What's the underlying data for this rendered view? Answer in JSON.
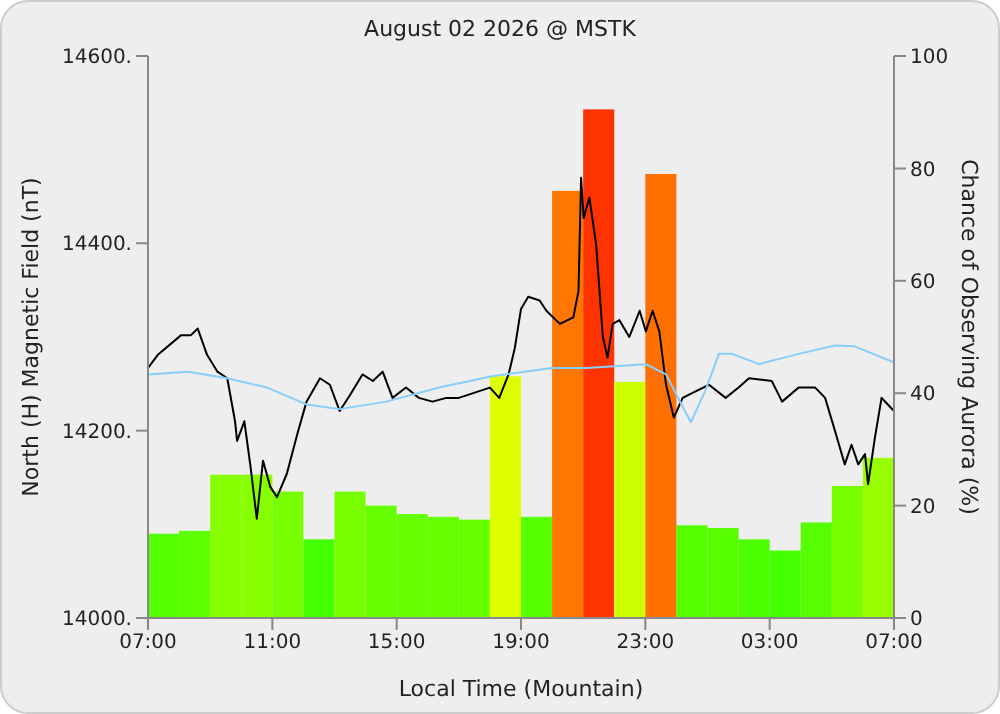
{
  "chart_data": {
    "type": "bar",
    "title": "August 02 2026 @ MSTK",
    "xlabel": "Local Time (Mountain)",
    "ylabel": "North (H) Magnetic Field (nT)",
    "y2label": "Chance of Observing Aurora (%)",
    "xlim": [
      "2026-08-02T07:00",
      "2026-08-03T07:00"
    ],
    "xticks": [
      {
        "value": "2026-08-02T07:00",
        "label": "07:00"
      },
      {
        "value": "2026-08-02T11:00",
        "label": "11:00"
      },
      {
        "value": "2026-08-02T15:00",
        "label": "15:00"
      },
      {
        "value": "2026-08-02T19:00",
        "label": "19:00"
      },
      {
        "value": "2026-08-02T23:00",
        "label": "23:00"
      },
      {
        "value": "2026-08-03T03:00",
        "label": "03:00"
      },
      {
        "value": "2026-08-03T07:00",
        "label": "07:00"
      }
    ],
    "ylim": [
      14000,
      14600
    ],
    "yticks": [
      {
        "value": 14000,
        "label": "14000."
      },
      {
        "value": 14200,
        "label": "14200."
      },
      {
        "value": 14400,
        "label": "14400."
      },
      {
        "value": 14600,
        "label": "14600."
      }
    ],
    "y2lim": [
      0,
      100
    ],
    "y2ticks": [
      0,
      20,
      40,
      60,
      80,
      100
    ],
    "grid": false,
    "legend": false,
    "series": [
      {
        "axis": "y2",
        "x": [
          "2026-08-02T07:30",
          "2026-08-02T08:30",
          "2026-08-02T09:30",
          "2026-08-02T10:30",
          "2026-08-02T11:30",
          "2026-08-02T12:30",
          "2026-08-02T13:30",
          "2026-08-02T14:30",
          "2026-08-02T15:30",
          "2026-08-02T16:30",
          "2026-08-02T17:30",
          "2026-08-02T18:30",
          "2026-08-02T19:30",
          "2026-08-02T20:30",
          "2026-08-02T21:30",
          "2026-08-02T22:30",
          "2026-08-02T23:30",
          "2026-08-03T00:30",
          "2026-08-03T01:30",
          "2026-08-03T02:30",
          "2026-08-03T03:30",
          "2026-08-03T04:30",
          "2026-08-03T05:30",
          "2026-08-03T06:30"
        ],
        "values": [
          15,
          15.5,
          25.5,
          25.5,
          22.5,
          14,
          22.5,
          20,
          18.5,
          18,
          17.5,
          43,
          18,
          76,
          90.5,
          42,
          79,
          16.5,
          16,
          14,
          12,
          17,
          23.5,
          28.5
        ],
        "colors": [
          "#55ff00",
          "#5cff00",
          "#88ff00",
          "#88ff00",
          "#77ff00",
          "#44ff00",
          "#77ff00",
          "#66ff00",
          "#66ff00",
          "#66ff00",
          "#66ff00",
          "#ddff00",
          "#55ff00",
          "#ff7700",
          "#ff3300",
          "#ccff00",
          "#ff7000",
          "#55ff00",
          "#55ff00",
          "#4cff00",
          "#44ff00",
          "#55ff00",
          "#77ff00",
          "#99ff00"
        ]
      },
      {
        "type": "line",
        "color": "#000000",
        "x": [
          "2026-08-02T07:00",
          "2026-08-02T07:19",
          "2026-08-02T08:04",
          "2026-08-02T08:23",
          "2026-08-02T08:36",
          "2026-08-02T08:54",
          "2026-08-02T09:14",
          "2026-08-02T09:33",
          "2026-08-02T09:48",
          "2026-08-02T09:52",
          "2026-08-02T10:06",
          "2026-08-02T10:18",
          "2026-08-02T10:30",
          "2026-08-02T10:42",
          "2026-08-02T10:56",
          "2026-08-02T11:09",
          "2026-08-02T11:28",
          "2026-08-02T11:48",
          "2026-08-02T12:06",
          "2026-08-02T12:32",
          "2026-08-02T12:51",
          "2026-08-02T13:10",
          "2026-08-02T13:30",
          "2026-08-02T13:54",
          "2026-08-02T14:14",
          "2026-08-02T14:33",
          "2026-08-02T14:52",
          "2026-08-02T15:18",
          "2026-08-02T15:43",
          "2026-08-02T16:09",
          "2026-08-02T16:36",
          "2026-08-02T17:00",
          "2026-08-02T17:38",
          "2026-08-02T18:00",
          "2026-08-02T18:18",
          "2026-08-02T18:36",
          "2026-08-02T18:48",
          "2026-08-02T19:00",
          "2026-08-02T19:14",
          "2026-08-02T19:36",
          "2026-08-02T19:49",
          "2026-08-02T20:15",
          "2026-08-02T20:41",
          "2026-08-02T20:51",
          "2026-08-02T20:56",
          "2026-08-02T21:01",
          "2026-08-02T21:12",
          "2026-08-02T21:25",
          "2026-08-02T21:38",
          "2026-08-02T21:47",
          "2026-08-02T21:57",
          "2026-08-02T22:10",
          "2026-08-02T22:29",
          "2026-08-02T22:49",
          "2026-08-02T23:01",
          "2026-08-02T23:14",
          "2026-08-02T23:27",
          "2026-08-02T23:40",
          "2026-08-02T23:55",
          "2026-08-03T00:12",
          "2026-08-03T00:37",
          "2026-08-03T01:03",
          "2026-08-03T01:35",
          "2026-08-03T02:00",
          "2026-08-03T02:20",
          "2026-08-03T03:04",
          "2026-08-03T03:24",
          "2026-08-03T03:56",
          "2026-08-03T04:28",
          "2026-08-03T04:47",
          "2026-08-03T05:06",
          "2026-08-03T05:25",
          "2026-08-03T05:38",
          "2026-08-03T05:51",
          "2026-08-03T06:04",
          "2026-08-03T06:10",
          "2026-08-03T06:23",
          "2026-08-03T06:36",
          "2026-08-03T06:48",
          "2026-08-03T07:00"
        ],
        "values": [
          14267,
          14281,
          14302,
          14302,
          14309,
          14281,
          14263,
          14256,
          14210,
          14189,
          14210,
          14161,
          14106,
          14168,
          14140,
          14129,
          14154,
          14196,
          14231,
          14256,
          14249,
          14221,
          14238,
          14260,
          14253,
          14263,
          14235,
          14246,
          14235,
          14231,
          14235,
          14235,
          14242,
          14246,
          14235,
          14260,
          14288,
          14330,
          14343,
          14339,
          14328,
          14314,
          14321,
          14349,
          14470,
          14427,
          14449,
          14399,
          14300,
          14278,
          14314,
          14318,
          14300,
          14328,
          14306,
          14328,
          14306,
          14249,
          14214,
          14235,
          14242,
          14249,
          14235,
          14246,
          14256,
          14253,
          14231,
          14246,
          14246,
          14235,
          14200,
          14164,
          14185,
          14164,
          14175,
          14143,
          14192,
          14235,
          14228,
          14221
        ]
      },
      {
        "type": "line",
        "color": "#87cefa",
        "x": [
          "2026-08-02T07:00",
          "2026-08-02T08:17",
          "2026-08-02T09:33",
          "2026-08-02T10:50",
          "2026-08-02T12:06",
          "2026-08-02T13:10",
          "2026-08-02T14:40",
          "2026-08-02T16:22",
          "2026-08-02T18:04",
          "2026-08-02T20:00",
          "2026-08-02T21:06",
          "2026-08-02T23:01",
          "2026-08-02T23:40",
          "2026-08-03T00:06",
          "2026-08-03T00:28",
          "2026-08-03T00:56",
          "2026-08-03T01:22",
          "2026-08-03T01:48",
          "2026-08-03T02:39",
          "2026-08-03T03:56",
          "2026-08-03T05:06",
          "2026-08-03T05:44",
          "2026-08-03T07:00"
        ],
        "values": [
          14260,
          14263,
          14256,
          14246,
          14228,
          14223,
          14231,
          14246,
          14258,
          14267,
          14267,
          14271,
          14260,
          14232,
          14209,
          14243,
          14282,
          14282,
          14271,
          14282,
          14291,
          14290,
          14273
        ]
      }
    ]
  }
}
